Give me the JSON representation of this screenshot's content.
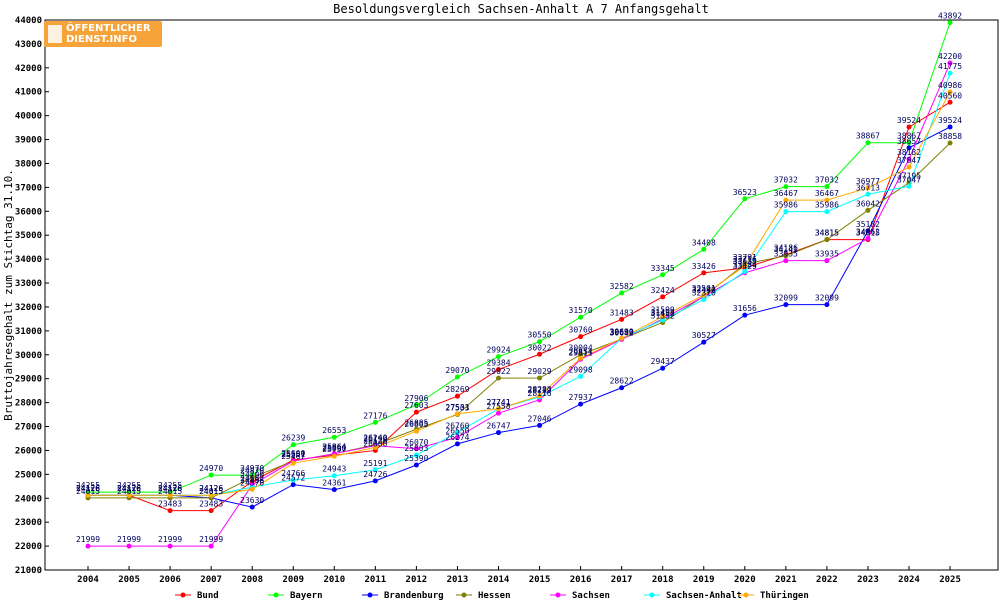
{
  "logo": {
    "line1": "ÖFFENTLICHER",
    "line2": "DIENST.INFO"
  },
  "colors": {
    "bund": "#ff0000",
    "bayern": "#00ff00",
    "brandenburg": "#0000ff",
    "hessen": "#808000",
    "sachsen": "#ff00ff",
    "sachsen_anhalt": "#00ffff",
    "thueringen": "#ffaa00"
  },
  "chart_data": {
    "type": "line",
    "title": "Besoldungsvergleich Sachsen-Anhalt A 7 Anfangsgehalt",
    "xlabel": "",
    "ylabel": "Bruttojahresgehalt zum Stichtag 31.10.",
    "ylim": [
      21000,
      44000
    ],
    "yticks": [
      21000,
      22000,
      23000,
      24000,
      25000,
      26000,
      27000,
      28000,
      29000,
      30000,
      31000,
      32000,
      33000,
      34000,
      35000,
      36000,
      37000,
      38000,
      39000,
      40000,
      41000,
      42000,
      43000,
      44000
    ],
    "categories": [
      "2004",
      "2005",
      "2006",
      "2007",
      "2008",
      "2009",
      "2010",
      "2011",
      "2012",
      "2013",
      "2014",
      "2015",
      "2016",
      "2017",
      "2018",
      "2019",
      "2020",
      "2021",
      "2022",
      "2023",
      "2024",
      "2025"
    ],
    "grid": false,
    "legend": "bottom",
    "series": [
      {
        "name": "Bund",
        "color": "#ff0000",
        "values": [
          24126,
          24126,
          23483,
          23483,
          24700,
          25600,
          25800,
          26000,
          27603,
          28269,
          29384,
          30022,
          30760,
          31483,
          32424,
          33426,
          33635,
          34186,
          34815,
          34815,
          39524,
          40560
        ]
      },
      {
        "name": "Bayern",
        "color": "#00ff00",
        "values": [
          24255,
          24255,
          24255,
          24970,
          24970,
          26239,
          26553,
          27176,
          27906,
          29070,
          29924,
          30550,
          31570,
          32582,
          33345,
          34408,
          36523,
          37032,
          37032,
          38867,
          38867,
          43892
        ]
      },
      {
        "name": "Brandenburg",
        "color": "#0000ff",
        "values": [
          24126,
          24126,
          24126,
          24015,
          23630,
          24572,
          24361,
          24726,
          25390,
          26274,
          26747,
          27046,
          27937,
          28622,
          29437,
          30527,
          31656,
          32099,
          32099,
          35182,
          38657,
          39524
        ]
      },
      {
        "name": "Hessen",
        "color": "#808000",
        "values": [
          24015,
          24015,
          24015,
          24015,
          24870,
          25551,
          25864,
          26240,
          26885,
          27503,
          29022,
          29029,
          30004,
          30659,
          31352,
          32440,
          33791,
          34141,
          34815,
          36042,
          37195,
          38858
        ]
      },
      {
        "name": "Sachsen",
        "color": "#ff00ff",
        "values": [
          21999,
          21999,
          21999,
          21999,
          24562,
          25557,
          25864,
          26199,
          26070,
          26550,
          27558,
          28116,
          29811,
          30642,
          31498,
          32432,
          33429,
          33935,
          33935,
          34862,
          38182,
          42200
        ]
      },
      {
        "name": "Sachsen-Anhalt",
        "color": "#00ffff",
        "values": [
          24126,
          24126,
          24126,
          24126,
          24466,
          24766,
          24943,
          25191,
          25803,
          26760,
          27741,
          28239,
          29098,
          30690,
          31452,
          32310,
          33484,
          35986,
          35986,
          36713,
          37047,
          41775
        ]
      },
      {
        "name": "Thüringen",
        "color": "#ffaa00",
        "values": [
          24126,
          24126,
          24126,
          24126,
          24370,
          25467,
          25757,
          26126,
          26805,
          27531,
          27741,
          28283,
          29854,
          30690,
          31599,
          32501,
          33716,
          36467,
          36467,
          36977,
          37847,
          40986
        ]
      }
    ]
  }
}
